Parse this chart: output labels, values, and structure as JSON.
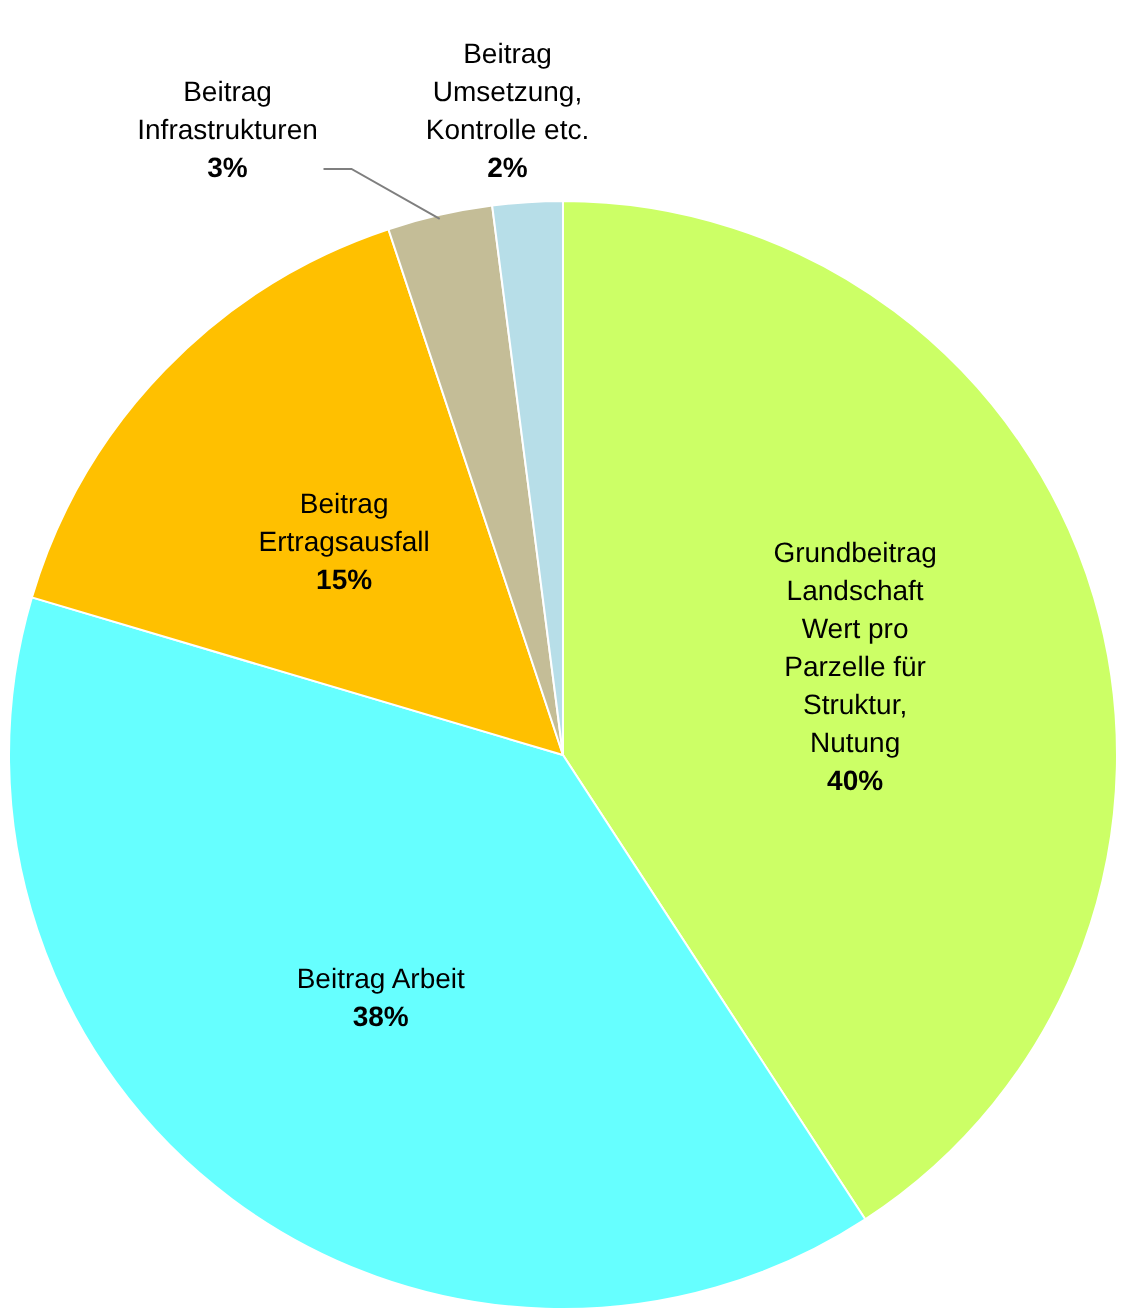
{
  "chart_data": {
    "type": "pie",
    "categories": [
      "Grundbeitrag Landschaft Wert pro Parzelle für Struktur, Nutung",
      "Beitrag Arbeit",
      "Beitrag Ertragsausfall",
      "Beitrag Infrastrukturen",
      "Beitrag Umsetzung, Kontrolle etc."
    ],
    "values": [
      40,
      38,
      15,
      3,
      2
    ],
    "value_labels": [
      "40%",
      "38%",
      "15%",
      "3%",
      "2%"
    ],
    "colors": [
      "#ccff66",
      "#66ffff",
      "#ffc000",
      "#c4bd97",
      "#b7dee8"
    ],
    "legend": false
  }
}
